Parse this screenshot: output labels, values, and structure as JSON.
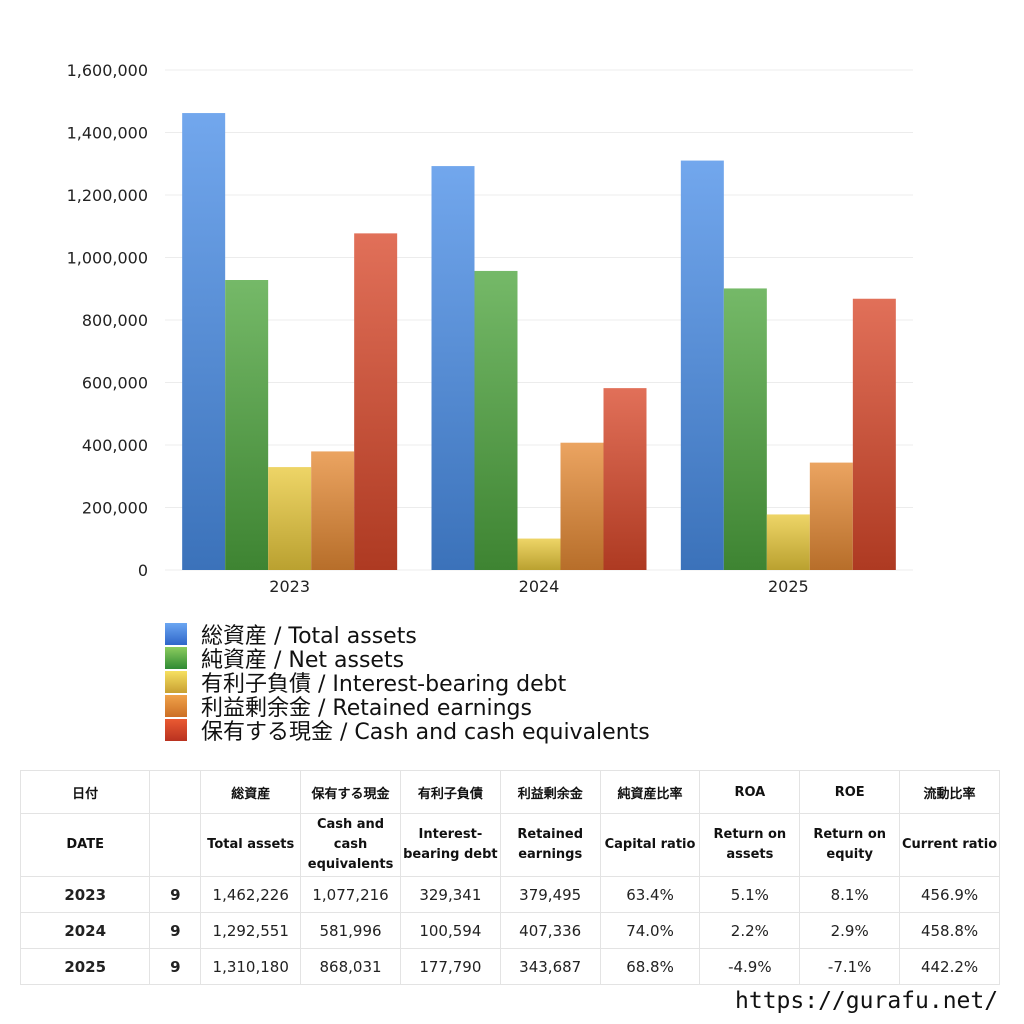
{
  "chart_data": {
    "type": "bar",
    "categories": [
      "2023",
      "2024",
      "2025"
    ],
    "series": [
      {
        "name": "総資産 / Total assets",
        "color": "#4a8ee8",
        "values": [
          1462226,
          1292551,
          1310180
        ]
      },
      {
        "name": "純資産 / Net assets",
        "color": "#4ea53e",
        "values": [
          928000,
          957000,
          901000
        ]
      },
      {
        "name": "有利子負債 / Interest-bearing debt",
        "color": "#e9c93c",
        "values": [
          329341,
          100594,
          177790
        ]
      },
      {
        "name": "利益剰余金 / Retained earnings",
        "color": "#e58a35",
        "values": [
          379495,
          407336,
          343687
        ]
      },
      {
        "name": "保有する現金 /  Cash and cash equivalents",
        "color": "#d9482a",
        "values": [
          1077216,
          581996,
          868031
        ]
      }
    ],
    "yticks": [
      "0",
      "200,000",
      "400,000",
      "600,000",
      "800,000",
      "1,000,000",
      "1,200,000",
      "1,400,000",
      "1,600,000"
    ],
    "ylim": [
      0,
      1600000
    ],
    "grid": true,
    "legend_position": "bottom"
  },
  "table": {
    "headers_ja": [
      "日付",
      "",
      "総資産",
      "保有する現金",
      "有利子負債",
      "利益剰余金",
      "純資産比率",
      "ROA",
      "ROE",
      "流動比率"
    ],
    "headers_en": [
      "DATE",
      "",
      "Total assets",
      "Cash and cash equivalents",
      "Interest-bearing debt",
      "Retained earnings",
      "Capital ratio",
      "Return on assets",
      "Return on equity",
      "Current ratio"
    ],
    "rows": [
      {
        "year": "2023",
        "month": "9",
        "total_assets": "1,462,226",
        "cash": "1,077,216",
        "debt": "329,341",
        "retained": "379,495",
        "capital_ratio": "63.4%",
        "roa": "5.1%",
        "roe": "8.1%",
        "current_ratio": "456.9%"
      },
      {
        "year": "2024",
        "month": "9",
        "total_assets": "1,292,551",
        "cash": "581,996",
        "debt": "100,594",
        "retained": "407,336",
        "capital_ratio": "74.0%",
        "roa": "2.2%",
        "roe": "2.9%",
        "current_ratio": "458.8%"
      },
      {
        "year": "2025",
        "month": "9",
        "total_assets": "1,310,180",
        "cash": "868,031",
        "debt": "177,790",
        "retained": "343,687",
        "capital_ratio": "68.8%",
        "roa": "-4.9%",
        "roe": "-7.1%",
        "current_ratio": "442.2%"
      }
    ]
  },
  "site_url": "https://gurafu.net/"
}
